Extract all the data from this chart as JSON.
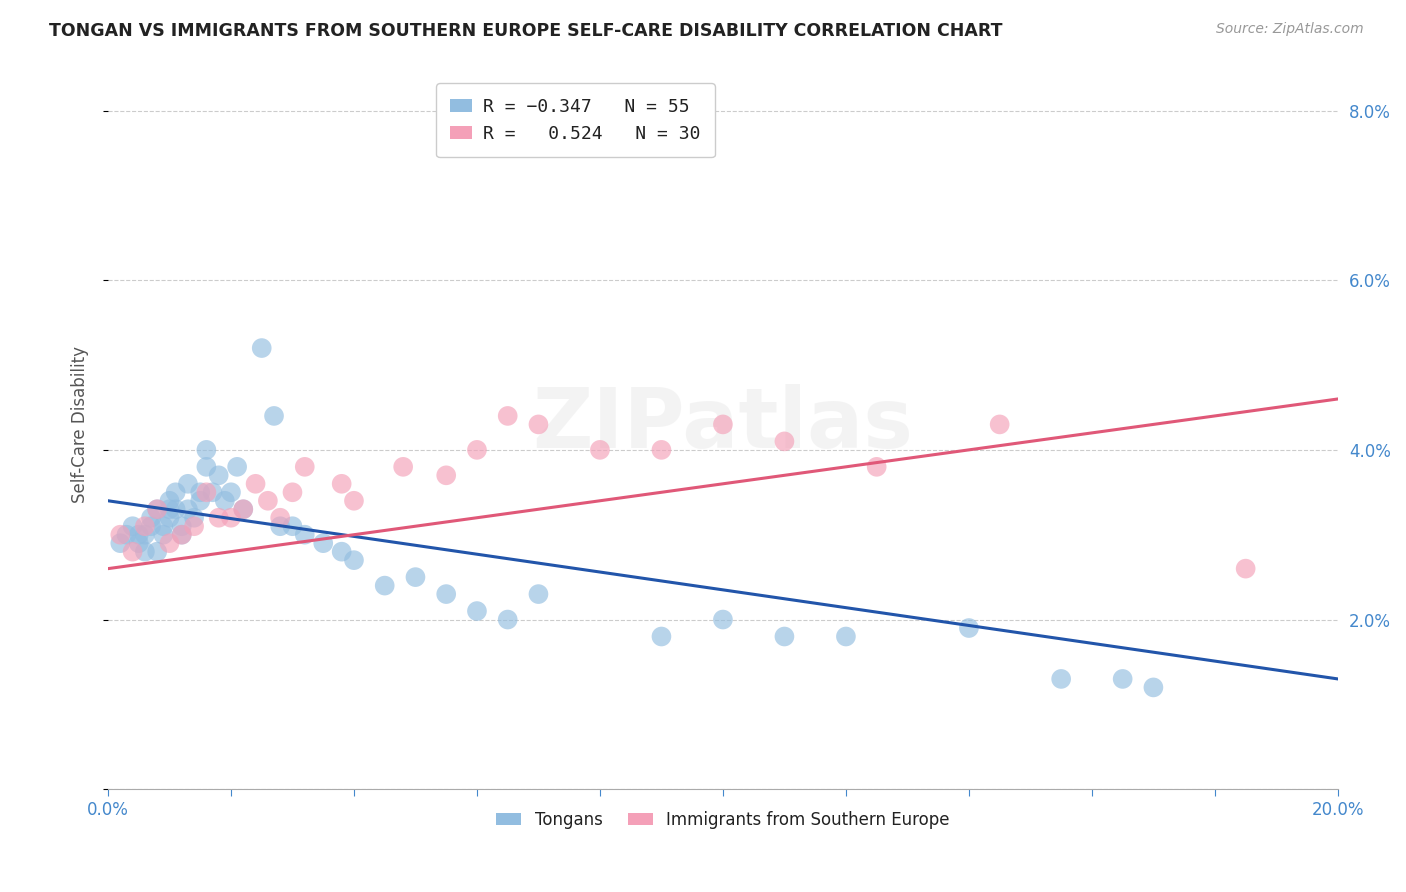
{
  "title": "TONGAN VS IMMIGRANTS FROM SOUTHERN EUROPE SELF-CARE DISABILITY CORRELATION CHART",
  "source": "Source: ZipAtlas.com",
  "ylabel": "Self-Care Disability",
  "xlim": [
    0,
    0.2
  ],
  "ylim": [
    0,
    0.086
  ],
  "yticks": [
    0.0,
    0.02,
    0.04,
    0.06,
    0.08
  ],
  "xticks": [
    0.0,
    0.02,
    0.04,
    0.06,
    0.08,
    0.1,
    0.12,
    0.14,
    0.16,
    0.18,
    0.2
  ],
  "legend_bottom_blue": "Tongans",
  "legend_bottom_pink": "Immigrants from Southern Europe",
  "blue_color": "#92bde0",
  "pink_color": "#f4a0b8",
  "blue_line_color": "#2255aa",
  "pink_line_color": "#e05878",
  "title_color": "#222222",
  "axis_label_color": "#555555",
  "tick_color": "#4488cc",
  "grid_color": "#cccccc",
  "blue_x": [
    0.002,
    0.003,
    0.004,
    0.005,
    0.005,
    0.006,
    0.006,
    0.007,
    0.007,
    0.008,
    0.008,
    0.009,
    0.009,
    0.01,
    0.01,
    0.01,
    0.011,
    0.011,
    0.012,
    0.012,
    0.013,
    0.013,
    0.014,
    0.015,
    0.015,
    0.016,
    0.016,
    0.017,
    0.018,
    0.019,
    0.02,
    0.021,
    0.022,
    0.025,
    0.027,
    0.028,
    0.03,
    0.032,
    0.035,
    0.038,
    0.04,
    0.045,
    0.05,
    0.055,
    0.06,
    0.065,
    0.07,
    0.09,
    0.1,
    0.11,
    0.12,
    0.14,
    0.155,
    0.165,
    0.17
  ],
  "blue_y": [
    0.029,
    0.03,
    0.031,
    0.03,
    0.029,
    0.03,
    0.028,
    0.032,
    0.031,
    0.033,
    0.028,
    0.031,
    0.03,
    0.034,
    0.033,
    0.032,
    0.035,
    0.033,
    0.031,
    0.03,
    0.036,
    0.033,
    0.032,
    0.035,
    0.034,
    0.04,
    0.038,
    0.035,
    0.037,
    0.034,
    0.035,
    0.038,
    0.033,
    0.052,
    0.044,
    0.031,
    0.031,
    0.03,
    0.029,
    0.028,
    0.027,
    0.024,
    0.025,
    0.023,
    0.021,
    0.02,
    0.023,
    0.018,
    0.02,
    0.018,
    0.018,
    0.019,
    0.013,
    0.013,
    0.012
  ],
  "pink_x": [
    0.002,
    0.004,
    0.006,
    0.008,
    0.01,
    0.012,
    0.014,
    0.016,
    0.018,
    0.02,
    0.022,
    0.024,
    0.026,
    0.028,
    0.03,
    0.032,
    0.038,
    0.04,
    0.048,
    0.055,
    0.06,
    0.065,
    0.07,
    0.08,
    0.09,
    0.1,
    0.11,
    0.125,
    0.145,
    0.185
  ],
  "pink_y": [
    0.03,
    0.028,
    0.031,
    0.033,
    0.029,
    0.03,
    0.031,
    0.035,
    0.032,
    0.032,
    0.033,
    0.036,
    0.034,
    0.032,
    0.035,
    0.038,
    0.036,
    0.034,
    0.038,
    0.037,
    0.04,
    0.044,
    0.043,
    0.04,
    0.04,
    0.043,
    0.041,
    0.038,
    0.043,
    0.026
  ],
  "blue_line_x0": 0.0,
  "blue_line_y0": 0.034,
  "blue_line_x1": 0.2,
  "blue_line_y1": 0.013,
  "pink_line_x0": 0.0,
  "pink_line_y0": 0.026,
  "pink_line_x1": 0.2,
  "pink_line_y1": 0.046,
  "watermark": "ZIPatlas"
}
